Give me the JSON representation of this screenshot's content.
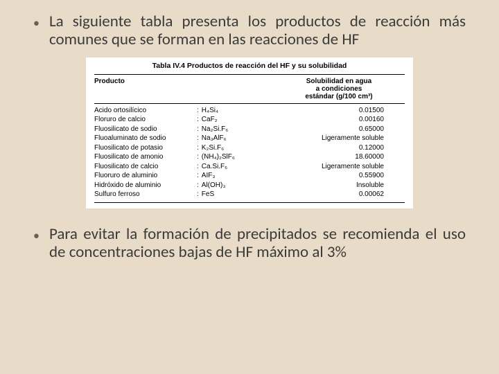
{
  "slide": {
    "background": "#e8dcc8",
    "bullet_color": "#6b5e4a",
    "text_color": "#3a3a3a",
    "bullet1": "La siguiente tabla presenta los productos de reacción más comunes que se forman en las reacciones de HF",
    "bullet2": "Para evitar la formación de precipitados se recomienda el uso de concentraciones bajas de HF máximo al 3%"
  },
  "table": {
    "title_prefix": "Tabla IV.4",
    "title_sup": "4",
    "title_rest": " Productos de reacción del HF y su solubilidad",
    "header_product": "Producto",
    "header_sol_line1": "Solubilidad en agua",
    "header_sol_line2": "a condiciones",
    "header_sol_line3": "estándar (g/100 cm³)",
    "rows": [
      {
        "name": "Acido ortosilícico",
        "formula": "H₄Si₄",
        "sol": "0.01500"
      },
      {
        "name": "Floruro de calcio",
        "formula": "CaF₂",
        "sol": "0.00160"
      },
      {
        "name": "Fluosilicato de sodio",
        "formula": "Na₂Si.F₆",
        "sol": "0.65000"
      },
      {
        "name": "Fluoaluminato de sodio",
        "formula": "Na₃AlF₆",
        "sol": "Ligeramente soluble"
      },
      {
        "name": "Fluosilicato de potasio",
        "formula": "K₂Si.F₆",
        "sol": "0.12000"
      },
      {
        "name": "Fluosilicato de amonio",
        "formula": "(NH₄)₂SlF₆",
        "sol": "18.60000"
      },
      {
        "name": "Fluosilicato de calcio",
        "formula": "Ca.Si.F₆",
        "sol": "Ligeramente soluble"
      },
      {
        "name": "Fluoruro de aluminio",
        "formula": "AIF₃",
        "sol": "0.55900"
      },
      {
        "name": "Hidróxido de aluminio",
        "formula": "Al(OH)₃",
        "sol": "Insoluble"
      },
      {
        "name": "Sulfuro ferroso",
        "formula": "FeS",
        "sol": "0.00062"
      }
    ]
  }
}
